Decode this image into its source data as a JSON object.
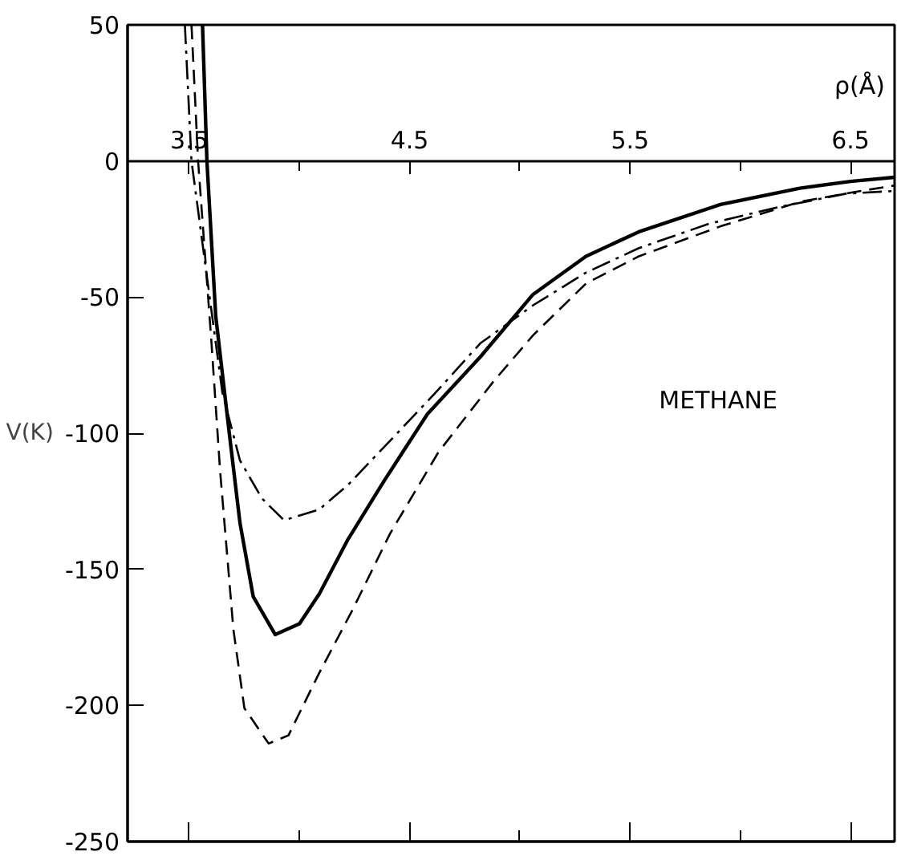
{
  "chart_data": {
    "type": "line",
    "xlabel": "ρ(Å)",
    "ylabel": "V(K)",
    "annotations": [
      "METHANE"
    ],
    "xlim": [
      3.22,
      6.7
    ],
    "ylim": [
      -250,
      50
    ],
    "xticks": [
      3.5,
      {
        "value": 4.0,
        "label": null
      },
      4.5,
      {
        "value": 5.0,
        "label": null
      },
      5.5,
      {
        "value": 6.0,
        "label": null
      },
      6.5
    ],
    "yticks": [
      -250,
      -200,
      -150,
      -100,
      -50,
      0,
      50
    ],
    "grid": false,
    "series": [
      {
        "color": "#000000",
        "line_style": "solid",
        "x": [
          3.56,
          3.58,
          3.62,
          3.68,
          3.73,
          3.79,
          3.89,
          4.0,
          4.09,
          4.22,
          4.38,
          4.58,
          4.82,
          5.06,
          5.3,
          5.54,
          5.91,
          6.27,
          6.5,
          6.7
        ],
        "values": [
          50,
          0,
          -57,
          -99,
          -133,
          -160,
          -174,
          -170,
          -159,
          -139,
          -118,
          -93,
          -72,
          -49,
          -35,
          -26,
          -16,
          -10,
          -7.5,
          -6
        ]
      },
      {
        "color": "#000000",
        "line_style": "dashed",
        "x": [
          3.51,
          3.54,
          3.6,
          3.64,
          3.7,
          3.75,
          3.86,
          3.95,
          4.09,
          4.24,
          4.41,
          4.63,
          4.88,
          5.06,
          5.3,
          5.54,
          5.91,
          6.27,
          6.51,
          6.7
        ],
        "values": [
          50,
          0,
          -66,
          -114,
          -172,
          -201,
          -214,
          -211,
          -188,
          -165,
          -137,
          -107,
          -81,
          -64,
          -45,
          -35,
          -24,
          -15,
          -11.5,
          -9
        ]
      },
      {
        "color": "#000000",
        "line_style": "dashdot",
        "x": [
          3.48,
          3.51,
          3.65,
          3.73,
          3.83,
          3.93,
          4.09,
          4.22,
          4.42,
          4.63,
          4.82,
          5.06,
          5.3,
          5.54,
          5.86,
          6.17,
          6.48,
          6.7
        ],
        "values": [
          50,
          0,
          -85,
          -110,
          -124,
          -132,
          -128,
          -119,
          -102,
          -84,
          -67,
          -53,
          -41,
          -32,
          -23,
          -17,
          -12,
          -11
        ]
      }
    ]
  }
}
